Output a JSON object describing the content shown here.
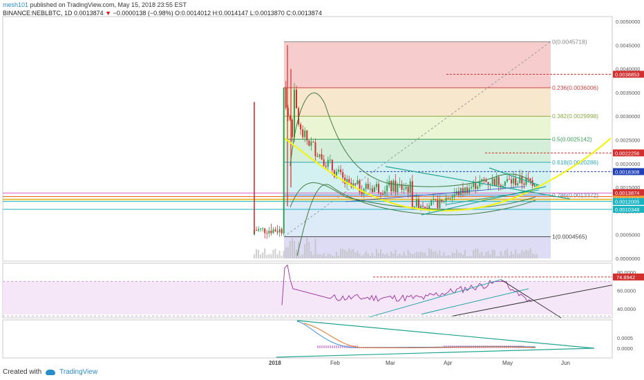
{
  "header": {
    "user": "mesh101",
    "published": "published on TradingView.com, May 15, 2018 23:55 EST",
    "symbol": "BINANCE:NEBLBTC, 1D",
    "last": "0.0013874",
    "change_arrow": "▼",
    "change": "−0.0000138 (−0.98%)",
    "ohlc": "O:0.0014012 H:0.0014147 L:0.0013870 C:0.0013874"
  },
  "footer": {
    "created_with": "Created with",
    "brand": "TradingView",
    "logo_icon": "tradingview-cloud-icon"
  },
  "colors": {
    "price_red": "#d32f2f",
    "price_green": "#2e9e4e",
    "yellow_curve": "#f3f31a",
    "trend_teal": "#1fa58f",
    "rsi_purple": "#9b2aa0",
    "fib_zone_0": "#f4c3c3",
    "fib_zone_1": "#f6e3c4",
    "fib_zone_2": "#e6f3cb",
    "fib_zone_3": "#cdebd3",
    "fib_zone_4": "#cdeef0",
    "fib_zone_5": "#d7e6f7",
    "fib_zone_6": "#e3e3e3",
    "fib_zone_7": "#dad8f3"
  },
  "chart_data": [
    {
      "type": "candlestick",
      "panel": "price",
      "ylim": [
        0,
        0.005
      ],
      "y_ticks": [
        "0.0050000",
        "0.0045000",
        "0.0040000",
        "0.0035000",
        "0.0030000",
        "0.0025000",
        "0.0020000",
        "0.0015000",
        "0.0010000",
        "0.0005000",
        "0.0000000"
      ],
      "x_ticks": [
        "2018",
        "Feb",
        "Mar",
        "Apr",
        "May",
        "Jun"
      ],
      "price_labels": [
        {
          "value": 0.0038853,
          "label": "0.0038853",
          "color": "#d32f2f"
        },
        {
          "value": 0.0022256,
          "label": "0.0022256",
          "color": "#d32f2f"
        },
        {
          "value": 0.0018308,
          "label": "0.0018308",
          "color": "#1e3fb8"
        },
        {
          "value": 0.0013874,
          "label": "0.0013874",
          "color": "#d32f2f"
        },
        {
          "value": 0.0012505,
          "label": "0.0012505",
          "color": "#f2a33a"
        },
        {
          "value": 0.0012005,
          "label": "0.0012005",
          "color": "#18b4c0"
        },
        {
          "value": 0.0010348,
          "label": "0.0010348",
          "color": "#18b4c0"
        }
      ],
      "fibonacci": [
        {
          "ratio": "0",
          "value": 0.0045718,
          "label": "0(0.0045718)"
        },
        {
          "ratio": "0.236",
          "value": 0.0036006,
          "label": "0.236(0.0036006)"
        },
        {
          "ratio": "0.382",
          "value": 0.0029998,
          "label": "0.382(0.0029998)"
        },
        {
          "ratio": "0.5",
          "value": 0.0025142,
          "label": "0.5(0.0025142)"
        },
        {
          "ratio": "0.618",
          "value": 0.0020286,
          "label": "0.618(0.0020286)"
        },
        {
          "ratio": "0.786",
          "value": 0.0013372,
          "label": "0.786(0.0013372)"
        },
        {
          "ratio": "1",
          "value": 0.0004565,
          "label": "1(0.0004565)"
        }
      ]
    },
    {
      "type": "line",
      "panel": "rsi",
      "ylim": [
        30,
        90
      ],
      "y_ticks": [
        "80.0000",
        "60.0000",
        "40.0000"
      ],
      "price_label": {
        "value": 74.8942,
        "label": "74.8942"
      }
    },
    {
      "type": "line",
      "panel": "macd",
      "y_ticks": [
        "0.0005",
        "0.0000"
      ]
    }
  ]
}
